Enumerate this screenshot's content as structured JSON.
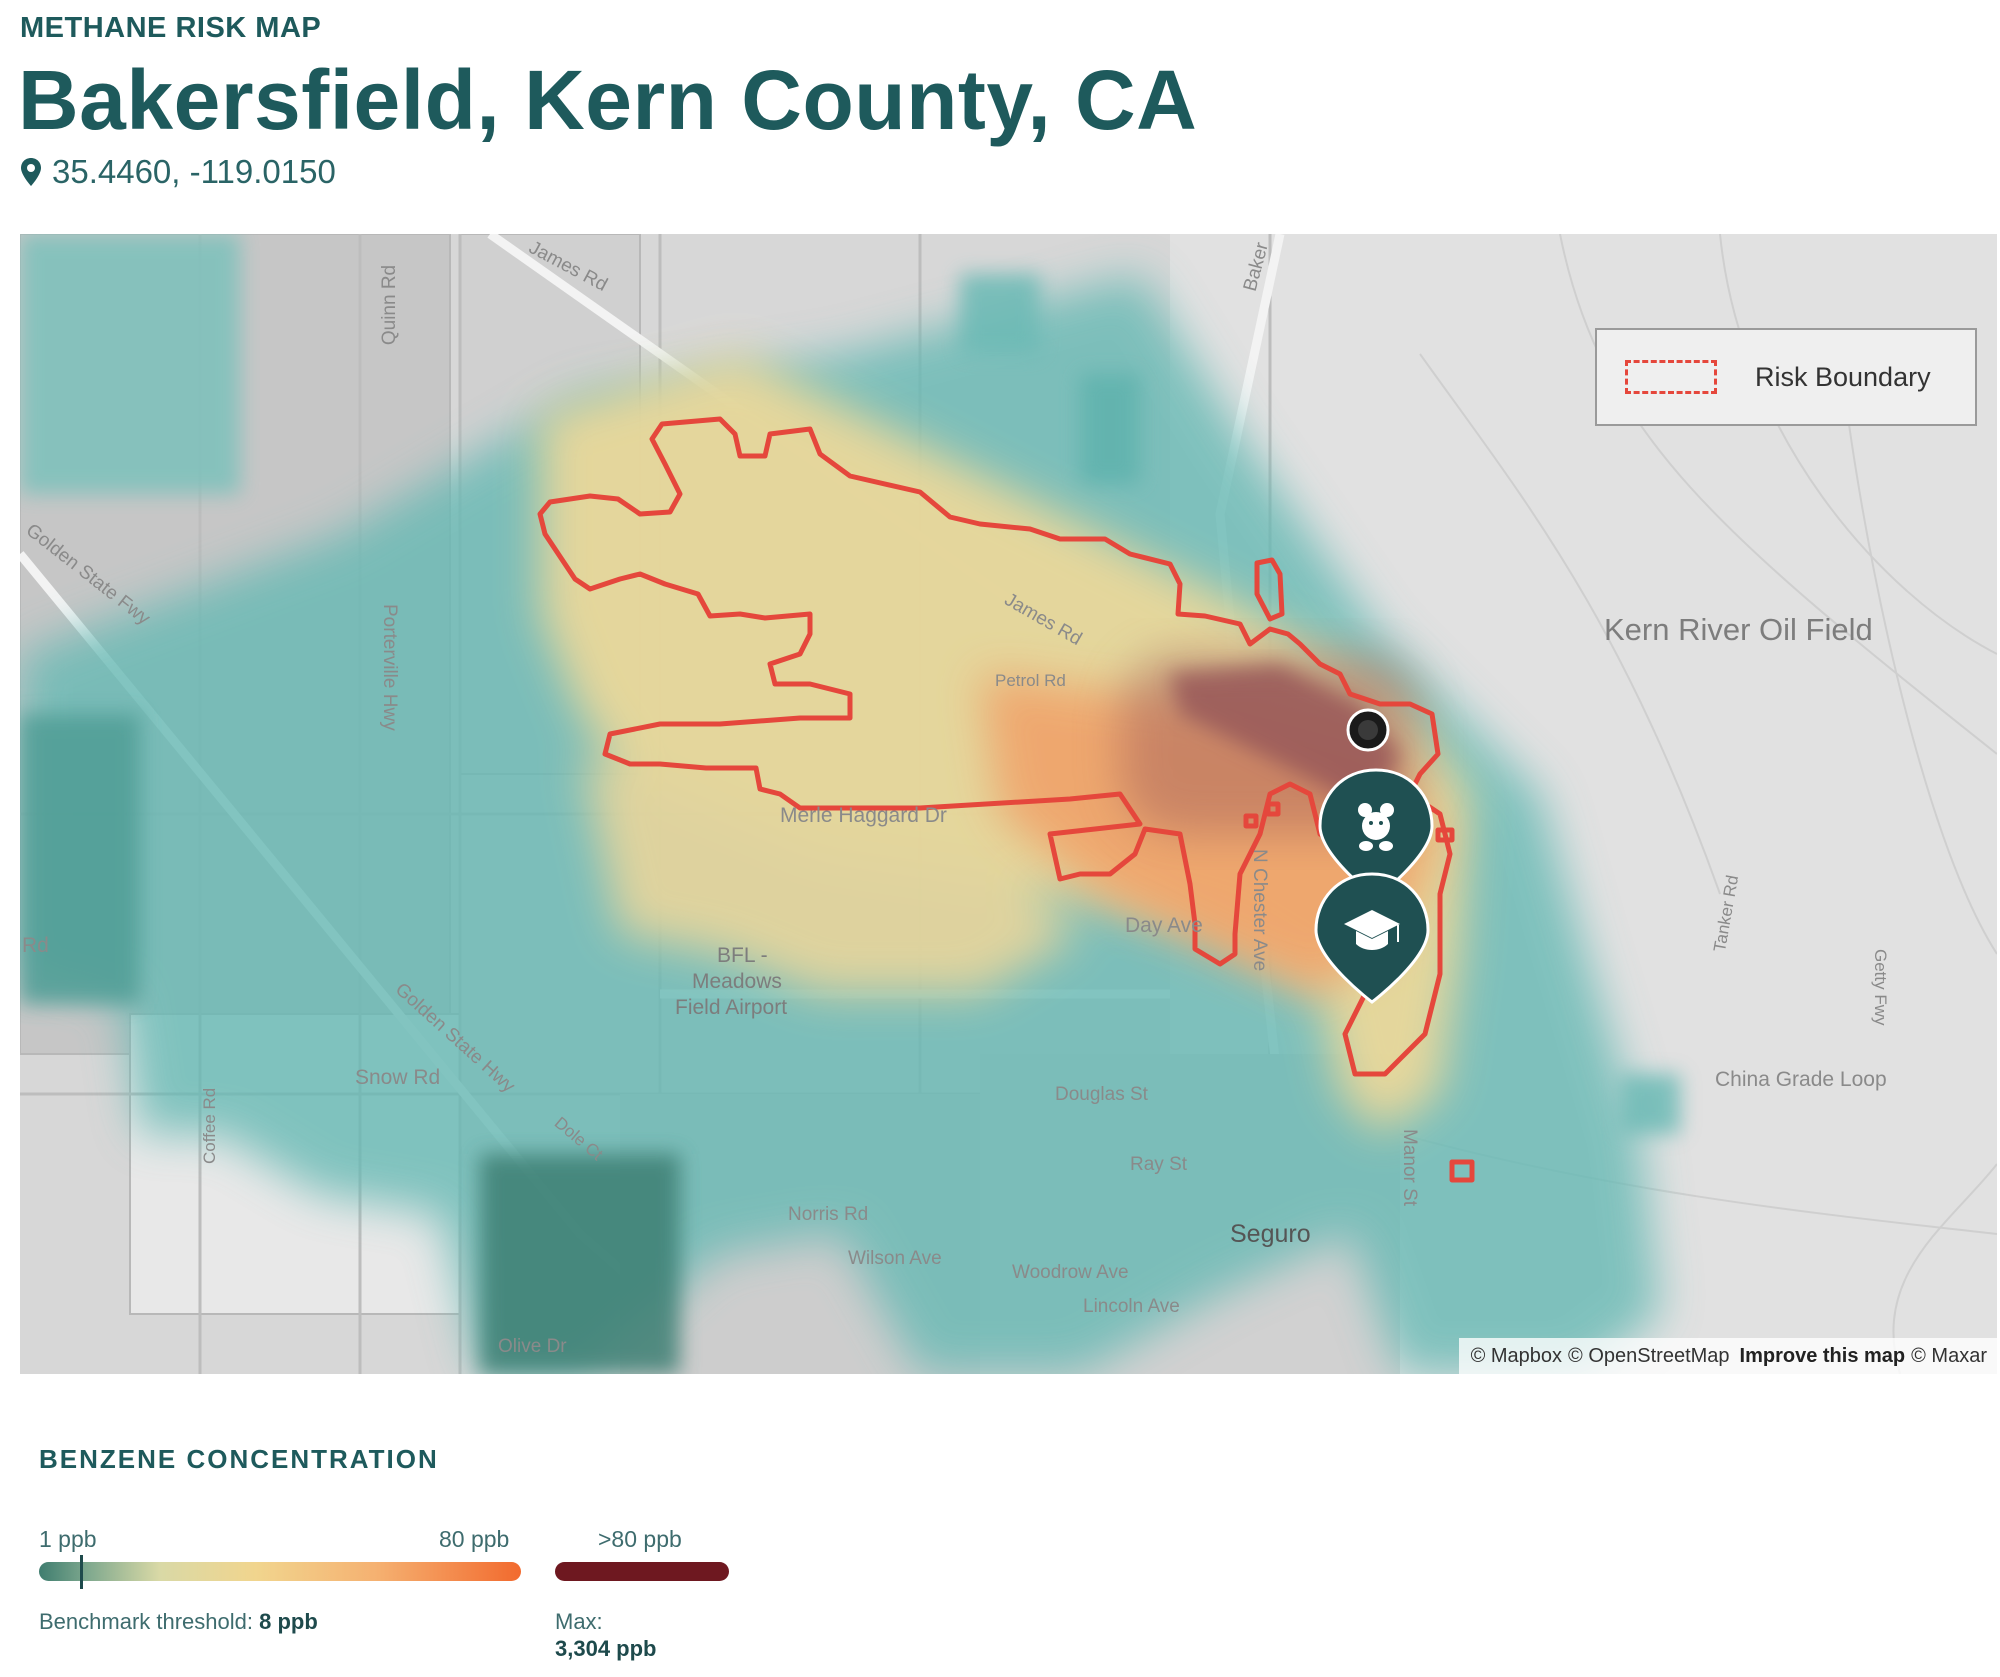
{
  "header": {
    "kicker": "METHANE RISK MAP",
    "title": "Bakersfield, Kern County, CA",
    "coordinates": "35.4460, -119.0150"
  },
  "map": {
    "legend": {
      "label": "Risk Boundary",
      "swatch_color": "#e5473c"
    },
    "labels": {
      "quinn_rd": "Quinn Rd",
      "james_rd_top": "James Rd",
      "baker": "Baker",
      "golden_state_fwy": "Golden State Fwy",
      "porterville_hwy": "Porterville Hwy",
      "james_rd_mid": "James Rd",
      "petrol_rd": "Petrol Rd",
      "merle_haggard_dr": "Merle Haggard Dr",
      "kern_river_oil_field": "Kern River Oil Field",
      "rd_left": "Rd",
      "golden_state_hwy": "Golden State Hwy",
      "bfl_airport_1": "BFL -",
      "bfl_airport_2": "Meadows",
      "bfl_airport_3": "Field Airport",
      "day_ave": "Day Ave",
      "n_chester_ave": "N Chester Ave",
      "tanker_rd": "Tanker Rd",
      "getty_fwy": "Getty Fwy",
      "snow_rd": "Snow Rd",
      "coffee_rd": "Coffee Rd",
      "dole_ct": "Dole Ct",
      "douglas_st": "Douglas St",
      "china_grade_loop": "China Grade Loop",
      "ray_st": "Ray St",
      "manor_st": "Manor St",
      "norris_rd": "Norris Rd",
      "seguro": "Seguro",
      "wilson_ave": "Wilson Ave",
      "woodrow_ave": "Woodrow Ave",
      "lincoln_ave": "Lincoln Ave",
      "olive_dr": "Olive Dr"
    },
    "attribution": {
      "mapbox": "© Mapbox",
      "osm": "© OpenStreetMap",
      "improve": "Improve this map",
      "maxar": "© Maxar"
    },
    "markers": [
      {
        "icon": "source-point-icon"
      },
      {
        "icon": "childcare-pin-icon",
        "color": "#1f5052"
      },
      {
        "icon": "school-pin-icon",
        "color": "#1f5052"
      }
    ]
  },
  "legend": {
    "title": "BENZENE CONCENTRATION",
    "min_label": "1 ppb",
    "max_label": "80 ppb",
    "over_label": ">80 ppb",
    "benchmark_label": "Benchmark threshold:",
    "benchmark_value": "8 ppb",
    "max_text": "Max:",
    "max_value": "3,304 ppb",
    "colors": {
      "low": "#3f7d6f",
      "mid": "#f1d58e",
      "high": "#f26a2e",
      "over": "#6e1820"
    }
  }
}
